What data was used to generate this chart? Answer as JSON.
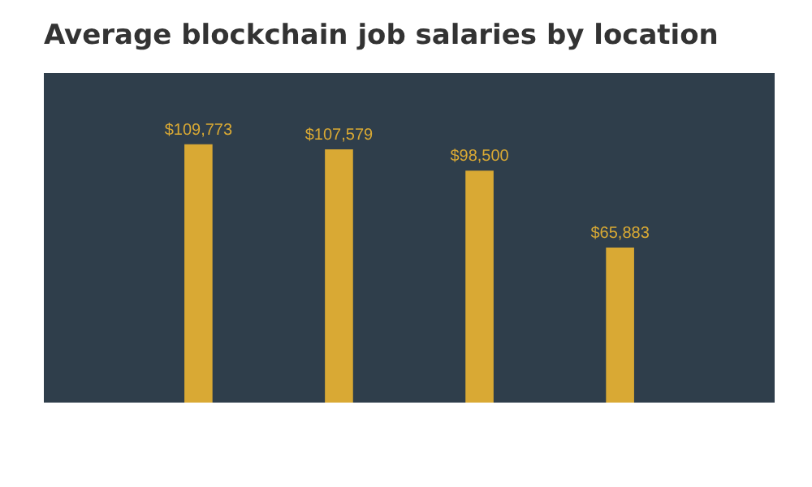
{
  "chart_data": {
    "type": "bar",
    "title": "Average blockchain job salaries by location",
    "categories": [
      null,
      null,
      null,
      null
    ],
    "values": [
      109773,
      107579,
      98500,
      65883
    ],
    "value_labels": [
      "$109,773",
      "$107,579",
      "$98,500",
      "$65,883"
    ],
    "color": "#d9a934",
    "ylim": [
      0,
      140000
    ]
  }
}
